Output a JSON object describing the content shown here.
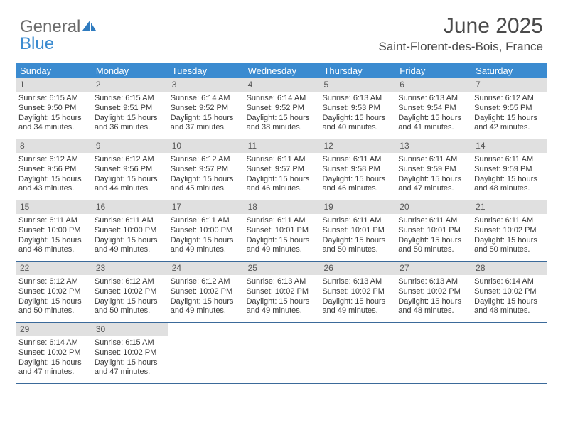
{
  "logo": {
    "part1": "General",
    "part2": "Blue"
  },
  "title": "June 2025",
  "location": "Saint-Florent-des-Bois, France",
  "colors": {
    "header_bg": "#3b8bd0",
    "daynum_bg": "#e0e0e0",
    "row_border": "#3b6a9a",
    "text": "#333333",
    "logo_gray": "#6a6a6a",
    "logo_blue": "#3b8bd0"
  },
  "weekdays": [
    "Sunday",
    "Monday",
    "Tuesday",
    "Wednesday",
    "Thursday",
    "Friday",
    "Saturday"
  ],
  "weeks": [
    [
      {
        "n": "1",
        "sr": "Sunrise: 6:15 AM",
        "ss": "Sunset: 9:50 PM",
        "d1": "Daylight: 15 hours",
        "d2": "and 34 minutes."
      },
      {
        "n": "2",
        "sr": "Sunrise: 6:15 AM",
        "ss": "Sunset: 9:51 PM",
        "d1": "Daylight: 15 hours",
        "d2": "and 36 minutes."
      },
      {
        "n": "3",
        "sr": "Sunrise: 6:14 AM",
        "ss": "Sunset: 9:52 PM",
        "d1": "Daylight: 15 hours",
        "d2": "and 37 minutes."
      },
      {
        "n": "4",
        "sr": "Sunrise: 6:14 AM",
        "ss": "Sunset: 9:52 PM",
        "d1": "Daylight: 15 hours",
        "d2": "and 38 minutes."
      },
      {
        "n": "5",
        "sr": "Sunrise: 6:13 AM",
        "ss": "Sunset: 9:53 PM",
        "d1": "Daylight: 15 hours",
        "d2": "and 40 minutes."
      },
      {
        "n": "6",
        "sr": "Sunrise: 6:13 AM",
        "ss": "Sunset: 9:54 PM",
        "d1": "Daylight: 15 hours",
        "d2": "and 41 minutes."
      },
      {
        "n": "7",
        "sr": "Sunrise: 6:12 AM",
        "ss": "Sunset: 9:55 PM",
        "d1": "Daylight: 15 hours",
        "d2": "and 42 minutes."
      }
    ],
    [
      {
        "n": "8",
        "sr": "Sunrise: 6:12 AM",
        "ss": "Sunset: 9:56 PM",
        "d1": "Daylight: 15 hours",
        "d2": "and 43 minutes."
      },
      {
        "n": "9",
        "sr": "Sunrise: 6:12 AM",
        "ss": "Sunset: 9:56 PM",
        "d1": "Daylight: 15 hours",
        "d2": "and 44 minutes."
      },
      {
        "n": "10",
        "sr": "Sunrise: 6:12 AM",
        "ss": "Sunset: 9:57 PM",
        "d1": "Daylight: 15 hours",
        "d2": "and 45 minutes."
      },
      {
        "n": "11",
        "sr": "Sunrise: 6:11 AM",
        "ss": "Sunset: 9:57 PM",
        "d1": "Daylight: 15 hours",
        "d2": "and 46 minutes."
      },
      {
        "n": "12",
        "sr": "Sunrise: 6:11 AM",
        "ss": "Sunset: 9:58 PM",
        "d1": "Daylight: 15 hours",
        "d2": "and 46 minutes."
      },
      {
        "n": "13",
        "sr": "Sunrise: 6:11 AM",
        "ss": "Sunset: 9:59 PM",
        "d1": "Daylight: 15 hours",
        "d2": "and 47 minutes."
      },
      {
        "n": "14",
        "sr": "Sunrise: 6:11 AM",
        "ss": "Sunset: 9:59 PM",
        "d1": "Daylight: 15 hours",
        "d2": "and 48 minutes."
      }
    ],
    [
      {
        "n": "15",
        "sr": "Sunrise: 6:11 AM",
        "ss": "Sunset: 10:00 PM",
        "d1": "Daylight: 15 hours",
        "d2": "and 48 minutes."
      },
      {
        "n": "16",
        "sr": "Sunrise: 6:11 AM",
        "ss": "Sunset: 10:00 PM",
        "d1": "Daylight: 15 hours",
        "d2": "and 49 minutes."
      },
      {
        "n": "17",
        "sr": "Sunrise: 6:11 AM",
        "ss": "Sunset: 10:00 PM",
        "d1": "Daylight: 15 hours",
        "d2": "and 49 minutes."
      },
      {
        "n": "18",
        "sr": "Sunrise: 6:11 AM",
        "ss": "Sunset: 10:01 PM",
        "d1": "Daylight: 15 hours",
        "d2": "and 49 minutes."
      },
      {
        "n": "19",
        "sr": "Sunrise: 6:11 AM",
        "ss": "Sunset: 10:01 PM",
        "d1": "Daylight: 15 hours",
        "d2": "and 50 minutes."
      },
      {
        "n": "20",
        "sr": "Sunrise: 6:11 AM",
        "ss": "Sunset: 10:01 PM",
        "d1": "Daylight: 15 hours",
        "d2": "and 50 minutes."
      },
      {
        "n": "21",
        "sr": "Sunrise: 6:11 AM",
        "ss": "Sunset: 10:02 PM",
        "d1": "Daylight: 15 hours",
        "d2": "and 50 minutes."
      }
    ],
    [
      {
        "n": "22",
        "sr": "Sunrise: 6:12 AM",
        "ss": "Sunset: 10:02 PM",
        "d1": "Daylight: 15 hours",
        "d2": "and 50 minutes."
      },
      {
        "n": "23",
        "sr": "Sunrise: 6:12 AM",
        "ss": "Sunset: 10:02 PM",
        "d1": "Daylight: 15 hours",
        "d2": "and 50 minutes."
      },
      {
        "n": "24",
        "sr": "Sunrise: 6:12 AM",
        "ss": "Sunset: 10:02 PM",
        "d1": "Daylight: 15 hours",
        "d2": "and 49 minutes."
      },
      {
        "n": "25",
        "sr": "Sunrise: 6:13 AM",
        "ss": "Sunset: 10:02 PM",
        "d1": "Daylight: 15 hours",
        "d2": "and 49 minutes."
      },
      {
        "n": "26",
        "sr": "Sunrise: 6:13 AM",
        "ss": "Sunset: 10:02 PM",
        "d1": "Daylight: 15 hours",
        "d2": "and 49 minutes."
      },
      {
        "n": "27",
        "sr": "Sunrise: 6:13 AM",
        "ss": "Sunset: 10:02 PM",
        "d1": "Daylight: 15 hours",
        "d2": "and 48 minutes."
      },
      {
        "n": "28",
        "sr": "Sunrise: 6:14 AM",
        "ss": "Sunset: 10:02 PM",
        "d1": "Daylight: 15 hours",
        "d2": "and 48 minutes."
      }
    ],
    [
      {
        "n": "29",
        "sr": "Sunrise: 6:14 AM",
        "ss": "Sunset: 10:02 PM",
        "d1": "Daylight: 15 hours",
        "d2": "and 47 minutes."
      },
      {
        "n": "30",
        "sr": "Sunrise: 6:15 AM",
        "ss": "Sunset: 10:02 PM",
        "d1": "Daylight: 15 hours",
        "d2": "and 47 minutes."
      },
      null,
      null,
      null,
      null,
      null
    ]
  ]
}
